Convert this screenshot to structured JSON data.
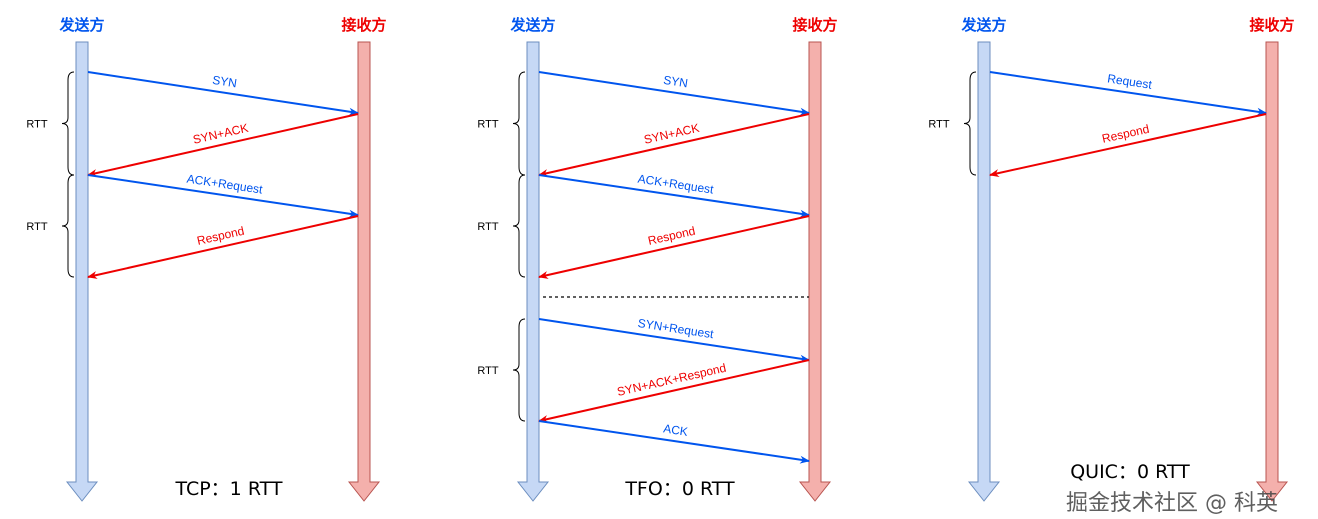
{
  "colors": {
    "sender": "#0055ee",
    "receiver": "#ee0000",
    "sender_bar": "#c6d8f5",
    "receiver_bar": "#f4b0ac"
  },
  "diagrams": [
    {
      "sender_label": "发送方",
      "receiver_label": "接收方",
      "caption": "TCP：1 RTT",
      "messages": [
        {
          "label": "SYN",
          "from": "sender"
        },
        {
          "label": "SYN+ACK",
          "from": "receiver"
        },
        {
          "label": "ACK+Request",
          "from": "sender"
        },
        {
          "label": "Respond",
          "from": "receiver"
        }
      ],
      "rtt_labels": [
        "RTT",
        "RTT"
      ]
    },
    {
      "sender_label": "发送方",
      "receiver_label": "接收方",
      "caption": "TFO：0 RTT",
      "messages": [
        {
          "label": "SYN",
          "from": "sender"
        },
        {
          "label": "SYN+ACK",
          "from": "receiver"
        },
        {
          "label": "ACK+Request",
          "from": "sender"
        },
        {
          "label": "Respond",
          "from": "receiver"
        },
        {
          "label": "SYN+Request",
          "from": "sender"
        },
        {
          "label": "SYN+ACK+Respond",
          "from": "receiver"
        },
        {
          "label": "ACK",
          "from": "sender"
        }
      ],
      "rtt_labels": [
        "RTT",
        "RTT",
        "RTT"
      ]
    },
    {
      "sender_label": "发送方",
      "receiver_label": "接收方",
      "caption": "QUIC：0 RTT",
      "messages": [
        {
          "label": "Request",
          "from": "sender"
        },
        {
          "label": "Respond",
          "from": "receiver"
        }
      ],
      "rtt_labels": [
        "RTT"
      ]
    }
  ],
  "watermark": "掘金技术社区 @ 科英"
}
